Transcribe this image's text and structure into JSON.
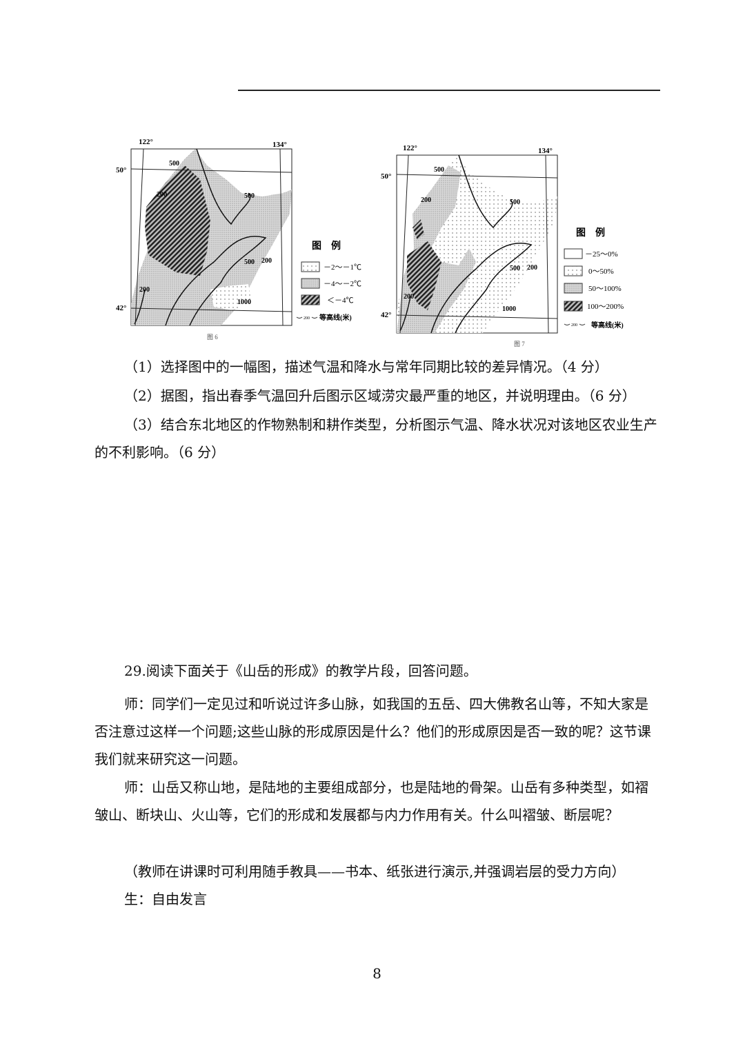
{
  "figure6": {
    "caption": "图 6",
    "lon_labels": [
      "122°",
      "134°"
    ],
    "lat_labels": [
      "50°",
      "42°"
    ],
    "contour_labels": [
      "500",
      "200",
      "500",
      "500",
      "200",
      "200",
      "1000"
    ],
    "legend_title": "图　例",
    "legend": [
      {
        "label": "－2～－1℃",
        "pattern": "sparse-dots"
      },
      {
        "label": "－4～－2℃",
        "pattern": "dense-dots"
      },
      {
        "label": "＜－4℃",
        "pattern": "hatch"
      }
    ],
    "contour_legend_value": "200",
    "contour_legend_label": "等高线(米)"
  },
  "figure7": {
    "caption": "图 7",
    "lon_labels": [
      "122°",
      "134°"
    ],
    "lat_labels": [
      "50°",
      "42°"
    ],
    "contour_labels": [
      "500",
      "200",
      "500",
      "500",
      "200",
      "200",
      "1000"
    ],
    "legend_title": "图　例",
    "legend": [
      {
        "label": "－25～0%",
        "pattern": "blank"
      },
      {
        "label": "0～50%",
        "pattern": "sparse-dots"
      },
      {
        "label": "50～100%",
        "pattern": "dense-dots"
      },
      {
        "label": "100～200%",
        "pattern": "hatch"
      }
    ],
    "contour_legend_value": "200",
    "contour_legend_label": "等高线(米)"
  },
  "questions": [
    "（1）选择图中的一幅图，描述气温和降水与常年同期比较的差异情况。（4 分）",
    "（2）据图，指出春季气温回升后图示区域涝灾最严重的地区，并说明理由。（6 分）",
    "（3）结合东北地区的作物熟制和耕作类型，分析图示气温、降水状况对该地区农业生产的不利影响。（6 分）"
  ],
  "q29": {
    "intro": "29.阅读下面关于《山岳的形成》的教学片段，回答问题。",
    "paragraphs": [
      "师：同学们一定见过和听说过许多山脉，如我国的五岳、四大佛教名山等，不知大家是否注意过这样一个问题;这些山脉的形成原因是什么？他们的形成原因是否一致的呢？这节课我们就来研究这一问题。",
      "师：山岳又称山地，是陆地的主要组成部分，也是陆地的骨架。山岳有多种类型，如褶皱山、断块山、火山等，它们的形成和发展都与内力作用有关。什么叫褶皱、断层呢？",
      "（教师在讲课时可利用随手教具——书本、纸张进行演示,并强调岩层的受力方向）",
      "生：自由发言"
    ]
  },
  "page_number": "8"
}
